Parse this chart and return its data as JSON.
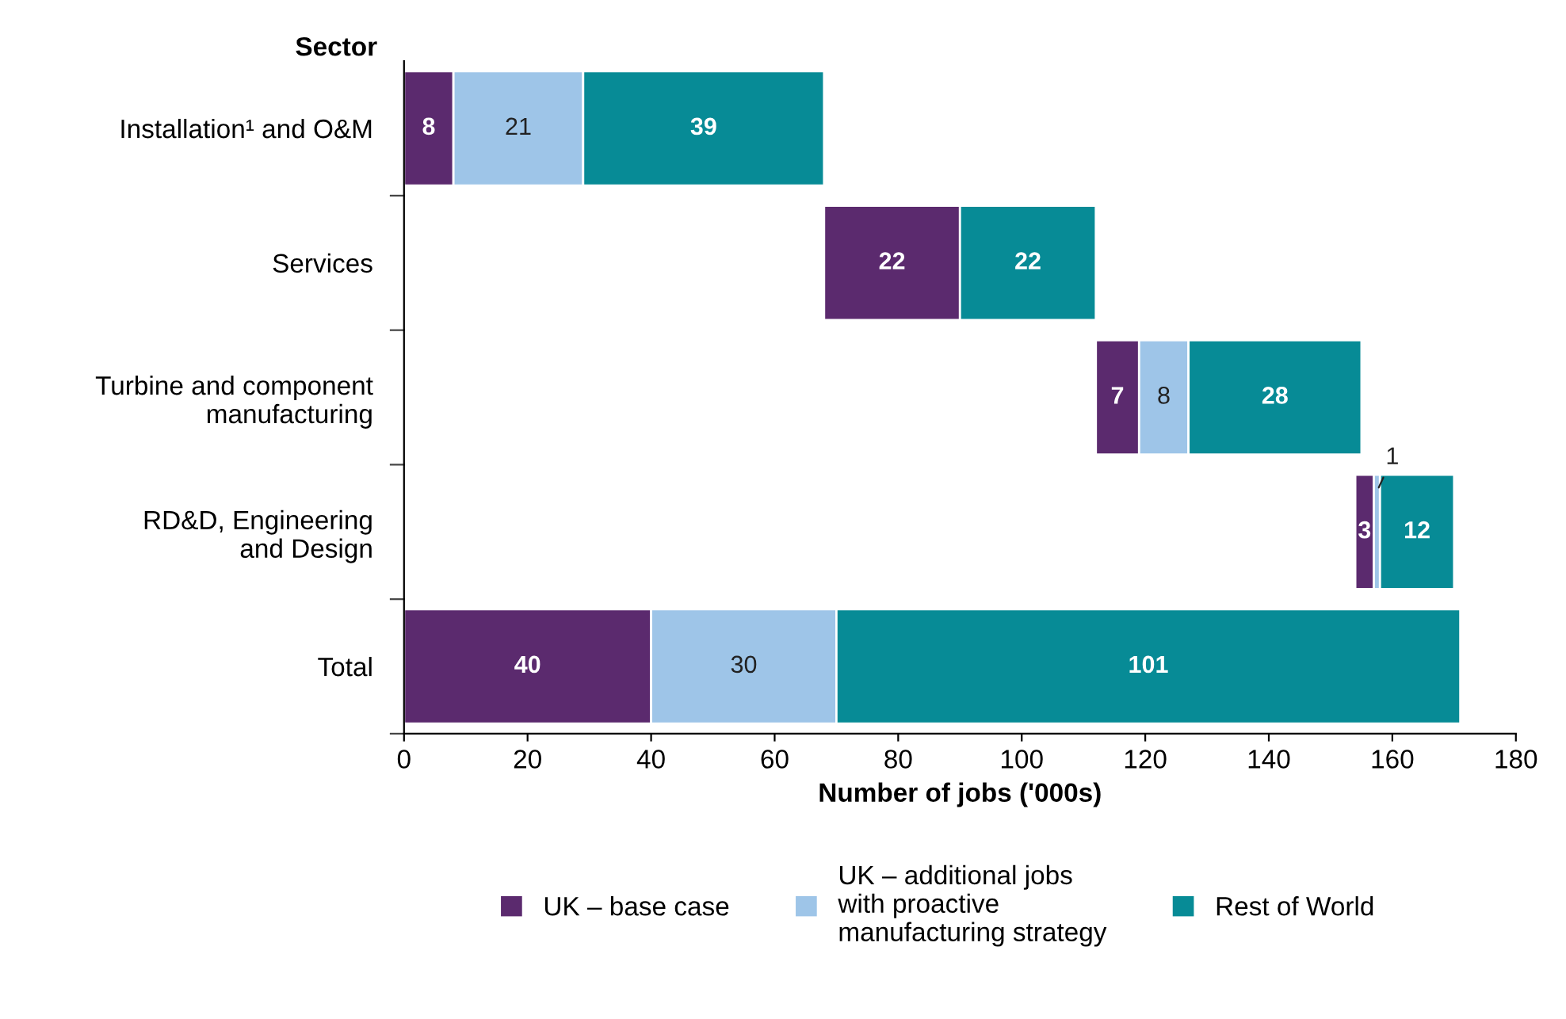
{
  "chart_data": {
    "type": "bar",
    "orientation": "horizontal",
    "categories": [
      "Installation¹ and O&M",
      "Services",
      "Turbine and component\nmanufacturing",
      "RD&D, Engineering\nand Design",
      "Total"
    ],
    "series": [
      {
        "name": "UK – base case",
        "color": "#5b2a6e",
        "values": [
          8,
          22,
          7,
          3,
          40
        ],
        "base": [
          0,
          68,
          112,
          154,
          0
        ]
      },
      {
        "name": "UK – additional jobs\nwith proactive\nmanufacturing strategy",
        "color": "#9ec5e8",
        "values": [
          21,
          null,
          8,
          1,
          30
        ],
        "base": [
          8,
          null,
          119,
          157,
          40
        ]
      },
      {
        "name": "Rest of World",
        "color": "#078b96",
        "values": [
          39,
          22,
          28,
          12,
          101
        ],
        "base": [
          29,
          90,
          127,
          158,
          70
        ]
      }
    ],
    "data_labels": true,
    "xlim": [
      0,
      180
    ],
    "xticks": [
      0,
      20,
      40,
      60,
      80,
      100,
      120,
      140,
      160,
      180
    ],
    "xlabel": "Number of jobs ('000s)",
    "ylabel": "Sector",
    "grid": false,
    "legend": "bottom"
  }
}
